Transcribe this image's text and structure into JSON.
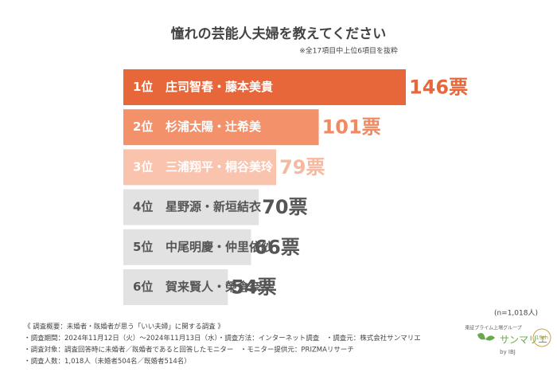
{
  "chart_data": {
    "type": "bar",
    "title": "憧れの芸能人夫婦を教えてください",
    "subtitle": "※全17項目中上位6項目を抜粋",
    "ranks": [
      "1位",
      "2位",
      "3位",
      "4位",
      "5位",
      "6位"
    ],
    "categories": [
      "庄司智春・藤本美貴",
      "杉浦太陽・辻希美",
      "三浦翔平・桐谷美玲",
      "星野源・新垣結衣",
      "中尾明慶・仲里依紗",
      "賀来賢人・榮倉奈々"
    ],
    "values": [
      146,
      101,
      79,
      70,
      66,
      54
    ],
    "value_labels": [
      "146票",
      "101票",
      "79票",
      "70票",
      "66票",
      "54票"
    ],
    "colors": [
      "#e8673a",
      "#f3916b",
      "#f9c3ad",
      "#e2e2e2",
      "#e2e2e2",
      "#e2e2e2"
    ],
    "value_label_colors": [
      "#e8673a",
      "#f08a63",
      "#f6b89e",
      "#555555",
      "#555555",
      "#555555"
    ],
    "name_colors": [
      "#ffffff",
      "#ffffff",
      "#ffffff",
      "#555555",
      "#555555",
      "#555555"
    ],
    "sample": "(n=1,018人)",
    "notes": [
      "《 調査概要：未婚者・既婚者が思う「いい夫婦」に関する調査 》",
      "・調査期間：2024年11月12日（火）〜2024年11月13日（水）・調査方法：インターネット調査　・調査元：株式会社サンマリエ",
      "・調査対象：調査回答時に未婚者／既婚者であると回答したモニター　・モニター提供元：PRIZMAリサーチ",
      "・調査人数：1,018人（未婚者504名／既婚者514名）"
    ],
    "logo": {
      "group": "東証プライム上場グループ",
      "brand": "サンマリエ",
      "by": "by IBJ",
      "anniversary": "13th"
    }
  }
}
